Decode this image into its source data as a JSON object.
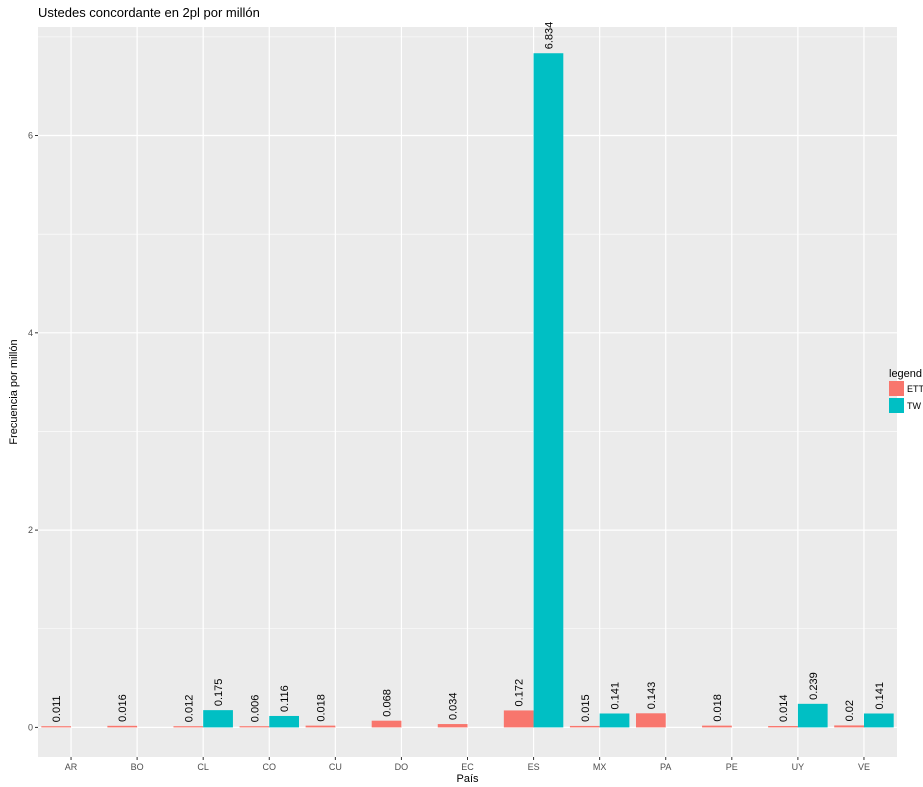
{
  "chart_data": {
    "type": "bar",
    "title": "Ustedes concordante en 2pl por millón",
    "xlabel": "País",
    "ylabel": "Frecuencia por millón",
    "categories": [
      "AR",
      "BO",
      "CL",
      "CO",
      "CU",
      "DO",
      "EC",
      "ES",
      "MX",
      "PA",
      "PE",
      "UY",
      "VE"
    ],
    "y_ticks": [
      0,
      2,
      4,
      6
    ],
    "ylim": [
      -0.3,
      7.1
    ],
    "grid": true,
    "legend": {
      "title": "legend",
      "placement": "right"
    },
    "series": [
      {
        "name": "ETT",
        "color": "#F8766D",
        "values": [
          0.011,
          0.016,
          0.012,
          0.006,
          0.018,
          0.068,
          0.034,
          0.172,
          0.015,
          0.143,
          0.018,
          0.014,
          0.02
        ],
        "labels": [
          "0.011",
          "0.016",
          "0.012",
          "0.006",
          "0.018",
          "0.068",
          "0.034",
          "0.172",
          "0.015",
          "0.143",
          "0.018",
          "0.014",
          "0.02"
        ]
      },
      {
        "name": "TW",
        "color": "#00BFC4",
        "values": [
          null,
          null,
          0.175,
          0.116,
          null,
          null,
          null,
          6.834,
          0.141,
          null,
          null,
          0.239,
          0.141
        ],
        "labels": [
          null,
          null,
          "0.175",
          "0.116",
          null,
          null,
          null,
          "6.834",
          "0.141",
          null,
          null,
          "0.239",
          "0.141"
        ]
      }
    ]
  }
}
